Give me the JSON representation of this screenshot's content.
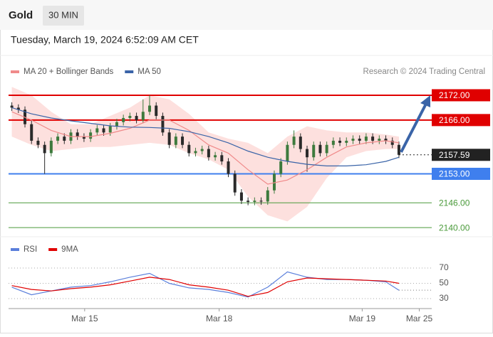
{
  "header": {
    "title": "Gold",
    "timeframe": "30 MIN",
    "datetime": "Tuesday, March 19, 2024 6:52:09 AM CET"
  },
  "chart_data": [
    {
      "type": "candlestick",
      "source": "Research © 2024 Trading Central",
      "xlim": [
        -0.5,
        64
      ],
      "ylim": [
        2138.3,
        2174.4
      ],
      "up_color": "#3d7a3d",
      "down_color": "#2a2a2a",
      "x": [
        0,
        1,
        2,
        3,
        4,
        5,
        6,
        7,
        8,
        9,
        10,
        11,
        12,
        13,
        14,
        15,
        16,
        17,
        18,
        19,
        20,
        21,
        22,
        23,
        24,
        25,
        26,
        27,
        28,
        29,
        30,
        31,
        32,
        33,
        34,
        35,
        36,
        37,
        38,
        39,
        40,
        41,
        42,
        43,
        44,
        45,
        46,
        47,
        48,
        49,
        50,
        51,
        52,
        53,
        54,
        55,
        56,
        57,
        58,
        59
      ],
      "open": [
        2169.5,
        2169,
        2168.5,
        2165,
        2161,
        2160,
        2158,
        2161,
        2162,
        2161,
        2163,
        2162,
        2161.5,
        2163,
        2164,
        2163,
        2164.5,
        2165.5,
        2166.5,
        2167,
        2166,
        2168,
        2169.5,
        2167,
        2163,
        2160,
        2162,
        2160,
        2158,
        2158.5,
        2159,
        2157,
        2157.5,
        2156,
        2153,
        2148.5,
        2146.5,
        2146.2,
        2146.5,
        2146.3,
        2149,
        2153,
        2156,
        2160,
        2162,
        2159,
        2157,
        2160,
        2158,
        2160,
        2161,
        2160.5,
        2161,
        2161.5,
        2161,
        2162,
        2161,
        2161.5,
        2161,
        2160
      ],
      "high": [
        2170.3,
        2169.8,
        2169.3,
        2165.8,
        2161.8,
        2160.8,
        2161.8,
        2162.8,
        2162.8,
        2163.8,
        2163.8,
        2162.8,
        2163.8,
        2164.8,
        2164.8,
        2165.3,
        2166.3,
        2167.3,
        2167.8,
        2167.8,
        2171,
        2172,
        2170.3,
        2167.8,
        2163.8,
        2162.8,
        2162.8,
        2160.8,
        2159.3,
        2159.8,
        2159.8,
        2158.3,
        2158.3,
        2156.8,
        2153.8,
        2149.3,
        2147.3,
        2147.3,
        2147.3,
        2149.8,
        2153.8,
        2156.8,
        2160.8,
        2163.5,
        2162.8,
        2159.8,
        2160.8,
        2160.8,
        2160.8,
        2161.8,
        2161.8,
        2161.8,
        2162.3,
        2162.3,
        2162.8,
        2162.8,
        2162.3,
        2162.3,
        2161.8,
        2160.8
      ],
      "low": [
        2168.2,
        2167.7,
        2164.2,
        2160.2,
        2159.2,
        2153,
        2157.2,
        2160.2,
        2160.2,
        2160.2,
        2161.2,
        2160.7,
        2160.7,
        2162.2,
        2162.2,
        2162.2,
        2163.7,
        2164.7,
        2165.7,
        2165.2,
        2165.2,
        2167.2,
        2166.2,
        2162.2,
        2159.2,
        2159.2,
        2159.2,
        2157.2,
        2157.2,
        2157.7,
        2156.2,
        2156.2,
        2155.2,
        2152.2,
        2147.7,
        2145.7,
        2145.4,
        2145.4,
        2145.5,
        2145.5,
        2148.2,
        2152.2,
        2155.2,
        2159.2,
        2158.2,
        2153.5,
        2156.2,
        2157.2,
        2157.2,
        2159.2,
        2159.7,
        2159.7,
        2160.2,
        2160.2,
        2160.2,
        2160.2,
        2160.2,
        2160.2,
        2159.2,
        2156.8
      ],
      "close": [
        2169,
        2168.5,
        2165,
        2161,
        2160,
        2158,
        2161,
        2162,
        2161,
        2163,
        2162,
        2161.5,
        2163,
        2164,
        2163,
        2164.5,
        2165.5,
        2166.5,
        2167,
        2166,
        2168,
        2169.5,
        2167,
        2163,
        2160,
        2162,
        2160,
        2158,
        2158.5,
        2159,
        2157,
        2157.5,
        2156,
        2153,
        2148.5,
        2146.5,
        2146.2,
        2146.5,
        2146.3,
        2149,
        2153,
        2156,
        2160,
        2162,
        2159,
        2157,
        2160,
        2158,
        2160,
        2161,
        2160.5,
        2161,
        2161.5,
        2161,
        2162,
        2161,
        2161.5,
        2161,
        2160,
        2157.59
      ],
      "series": [
        {
          "name": "MA 20 + Bollinger Bands",
          "color": "#f08a8a",
          "band_color": "#fde0de",
          "x": [
            0,
            3,
            6,
            9,
            12,
            15,
            18,
            21,
            24,
            27,
            30,
            33,
            36,
            39,
            42,
            45,
            48,
            51,
            54,
            57,
            59
          ],
          "values": [
            2168,
            2166,
            2163.5,
            2162,
            2162,
            2162.8,
            2164,
            2166,
            2166,
            2163.5,
            2160,
            2158,
            2154,
            2150.5,
            2151.5,
            2154,
            2157,
            2159.5,
            2160.5,
            2161,
            2160.5
          ],
          "upper": [
            2174,
            2172,
            2168,
            2165,
            2165,
            2167,
            2169,
            2172,
            2171,
            2167.5,
            2163,
            2161.5,
            2160.5,
            2158,
            2162,
            2164.5,
            2163.5,
            2163,
            2163,
            2162.5,
            2162
          ],
          "lower": [
            2162,
            2160,
            2158.5,
            2159,
            2159.5,
            2159.5,
            2160,
            2160.5,
            2160,
            2158,
            2156.5,
            2154,
            2147.5,
            2143,
            2141.5,
            2145,
            2152,
            2157,
            2158.5,
            2159,
            2159
          ]
        },
        {
          "name": "MA 50",
          "color": "#3a64a8",
          "x": [
            0,
            3,
            6,
            9,
            12,
            15,
            18,
            21,
            24,
            27,
            30,
            33,
            36,
            39,
            42,
            45,
            48,
            51,
            54,
            57,
            59
          ],
          "values": [
            2169,
            2167.5,
            2166.5,
            2165.8,
            2165.2,
            2164.6,
            2164.3,
            2164.2,
            2164,
            2163.2,
            2162,
            2160.5,
            2158.5,
            2157,
            2156,
            2155.3,
            2154.9,
            2154.9,
            2155.2,
            2156,
            2157
          ]
        }
      ],
      "levels": [
        {
          "value": 2172,
          "label": "2172.00",
          "color": "#e00000",
          "boxed": true
        },
        {
          "value": 2166,
          "label": "2166.00",
          "color": "#e00000",
          "boxed": true
        },
        {
          "value": 2157.59,
          "label": "2157.59",
          "color": "#222222",
          "boxed": true,
          "dotted": true
        },
        {
          "value": 2153,
          "label": "2153.00",
          "color": "#3f7fee",
          "boxed": true
        },
        {
          "value": 2146,
          "label": "2146.00",
          "color": "#4a9a3a",
          "boxed": false
        },
        {
          "value": 2140,
          "label": "2140.00",
          "color": "#4a9a3a",
          "boxed": false
        }
      ]
    },
    {
      "type": "line",
      "xlim": [
        -0.5,
        64
      ],
      "ylim": [
        18.8,
        81.2
      ],
      "yticks": [
        70,
        50,
        30
      ],
      "xticks": [
        {
          "value": 11.1,
          "label": "Mar 15"
        },
        {
          "value": 31.6,
          "label": "Mar 18"
        },
        {
          "value": 53.4,
          "label": "Mar 19"
        },
        {
          "value": 62.1,
          "label": "Mar 25"
        }
      ],
      "series": [
        {
          "name": "RSI",
          "color": "#5b7fdb",
          "x": [
            0,
            3,
            6,
            9,
            12,
            15,
            18,
            21,
            24,
            27,
            30,
            33,
            36,
            39,
            42,
            45,
            48,
            51,
            54,
            57,
            59
          ],
          "values": [
            45,
            35,
            40,
            45,
            47,
            52,
            58,
            63,
            50,
            44,
            42,
            38,
            32,
            45,
            65,
            58,
            55,
            55,
            54,
            52,
            41
          ]
        },
        {
          "name": "9MA",
          "color": "#e00000",
          "x": [
            0,
            3,
            6,
            9,
            12,
            15,
            18,
            21,
            24,
            27,
            30,
            33,
            36,
            39,
            42,
            45,
            48,
            51,
            54,
            57,
            59
          ],
          "values": [
            47,
            42,
            40,
            43,
            45,
            48,
            53,
            58,
            55,
            48,
            45,
            41,
            33,
            38,
            52,
            57,
            56,
            55,
            54,
            53,
            50
          ]
        }
      ]
    }
  ]
}
